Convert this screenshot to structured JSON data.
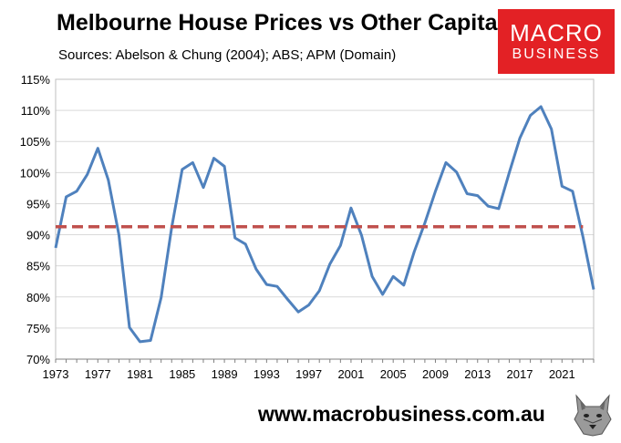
{
  "title": "Melbourne House Prices vs Other Capitals",
  "subtitle": "Sources: Abelson & Chung (2004); ABS; APM (Domain)",
  "logo": {
    "line1": "MACRO",
    "line2": "BUSINESS"
  },
  "website": "www.macrobusiness.com.au",
  "colors": {
    "series": "#4f81bd",
    "average": "#c0504d",
    "logo_bg": "#e32125"
  },
  "chart_data": {
    "type": "line",
    "title": "Melbourne House Prices vs Other Capitals",
    "xlabel": "",
    "ylabel": "",
    "xlim": [
      1973,
      2024
    ],
    "ylim": [
      70,
      115
    ],
    "x_ticks": [
      "1973",
      "1977",
      "1981",
      "1985",
      "1989",
      "1993",
      "1997",
      "2001",
      "2005",
      "2009",
      "2013",
      "2017",
      "2021"
    ],
    "y_ticks": [
      "70%",
      "75%",
      "80%",
      "85%",
      "90%",
      "95%",
      "100%",
      "105%",
      "110%",
      "115%"
    ],
    "y_tick_values": [
      70,
      75,
      80,
      85,
      90,
      95,
      100,
      105,
      110,
      115
    ],
    "grid": "horizontal",
    "series": [
      {
        "style": "solid",
        "x": [
          1973,
          1974,
          1975,
          1976,
          1977,
          1978,
          1979,
          1980,
          1981,
          1982,
          1983,
          1984,
          1985,
          1986,
          1987,
          1988,
          1989,
          1990,
          1991,
          1992,
          1993,
          1994,
          1995,
          1996,
          1997,
          1998,
          1999,
          2000,
          2001,
          2002,
          2003,
          2004,
          2005,
          2006,
          2007,
          2008,
          2009,
          2010,
          2011,
          2012,
          2013,
          2014,
          2015,
          2016,
          2017,
          2018,
          2019,
          2020,
          2021,
          2022,
          2023,
          2024
        ],
        "values": [
          87.9,
          96.1,
          97.0,
          99.7,
          103.9,
          98.8,
          90.0,
          75.1,
          72.8,
          73.0,
          79.9,
          91.2,
          100.5,
          101.6,
          97.6,
          102.3,
          101.0,
          89.5,
          88.5,
          84.5,
          82.0,
          81.7,
          79.6,
          77.6,
          78.7,
          81.0,
          85.3,
          88.3,
          94.3,
          89.9,
          83.3,
          80.4,
          83.3,
          81.9,
          87.3,
          91.9,
          97.0,
          101.6,
          100.1,
          96.6,
          96.3,
          94.6,
          94.2,
          100.0,
          105.5,
          109.2,
          110.6,
          107.0,
          97.8,
          97.0,
          89.6,
          81.2
        ]
      },
      {
        "style": "dashed",
        "x": [
          1973,
          2023
        ],
        "values": [
          91.3,
          91.3
        ]
      }
    ]
  }
}
